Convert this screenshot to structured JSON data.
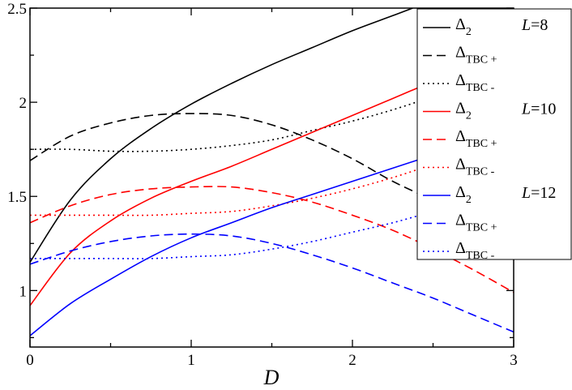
{
  "chart_data": {
    "type": "line",
    "title": "",
    "xlabel": "D",
    "ylabel": "",
    "xlim": [
      0,
      3
    ],
    "ylim": [
      0.7,
      2.5
    ],
    "x_ticks": [
      "0",
      "1",
      "2",
      "3"
    ],
    "y_ticks": [
      "1",
      "1.5",
      "2",
      "2.5"
    ],
    "grid": false,
    "legend_position": "top-right",
    "legend_groups": [
      {
        "name": "L=8",
        "var": "L",
        "value": "=8"
      },
      {
        "name": "L=10",
        "var": "L",
        "value": "=10"
      },
      {
        "name": "L=12",
        "var": "L",
        "value": "=12"
      }
    ],
    "x": [
      0,
      0.25,
      0.5,
      0.75,
      1,
      1.25,
      1.5,
      1.75,
      2,
      2.25,
      2.5,
      2.75,
      3
    ],
    "series": [
      {
        "label": "Δ",
        "sub": "2",
        "group": "L=8",
        "color": "#000000",
        "dash": "solid",
        "values": [
          1.15,
          1.48,
          1.7,
          1.86,
          1.99,
          2.1,
          2.2,
          2.29,
          2.38,
          2.46,
          2.54,
          2.61,
          2.68
        ]
      },
      {
        "label": "Δ",
        "sub": "TBC +",
        "group": "L=8",
        "color": "#000000",
        "dash": "dashed",
        "values": [
          1.69,
          1.82,
          1.89,
          1.93,
          1.94,
          1.93,
          1.88,
          1.8,
          1.7,
          1.58,
          1.48,
          1.38,
          1.27
        ]
      },
      {
        "label": "Δ",
        "sub": "TBC -",
        "group": "L=8",
        "color": "#000000",
        "dash": "dotted",
        "values": [
          1.75,
          1.75,
          1.74,
          1.74,
          1.75,
          1.77,
          1.8,
          1.85,
          1.9,
          1.96,
          2.03,
          2.1,
          2.2
        ]
      },
      {
        "label": "Δ",
        "sub": "2",
        "group": "L=10",
        "color": "#ff0000",
        "dash": "solid",
        "values": [
          0.92,
          1.2,
          1.37,
          1.49,
          1.58,
          1.66,
          1.75,
          1.84,
          1.93,
          2.02,
          2.11,
          2.19,
          2.28
        ]
      },
      {
        "label": "Δ",
        "sub": "TBC +",
        "group": "L=10",
        "color": "#ff0000",
        "dash": "dashed",
        "values": [
          1.36,
          1.45,
          1.51,
          1.54,
          1.55,
          1.55,
          1.52,
          1.47,
          1.4,
          1.32,
          1.22,
          1.11,
          0.99
        ]
      },
      {
        "label": "Δ",
        "sub": "TBC -",
        "group": "L=10",
        "color": "#ff0000",
        "dash": "dotted",
        "values": [
          1.4,
          1.4,
          1.4,
          1.4,
          1.41,
          1.42,
          1.45,
          1.49,
          1.54,
          1.6,
          1.67,
          1.74,
          1.81
        ]
      },
      {
        "label": "Δ",
        "sub": "2",
        "group": "L=12",
        "color": "#0000ff",
        "dash": "solid",
        "values": [
          0.76,
          0.93,
          1.06,
          1.18,
          1.28,
          1.36,
          1.44,
          1.51,
          1.58,
          1.65,
          1.72,
          1.79,
          1.86
        ]
      },
      {
        "label": "Δ",
        "sub": "TBC +",
        "group": "L=12",
        "color": "#0000ff",
        "dash": "dashed",
        "values": [
          1.14,
          1.21,
          1.26,
          1.29,
          1.3,
          1.29,
          1.25,
          1.19,
          1.12,
          1.04,
          0.96,
          0.87,
          0.78
        ]
      },
      {
        "label": "Δ",
        "sub": "TBC -",
        "group": "L=12",
        "color": "#0000ff",
        "dash": "dotted",
        "values": [
          1.17,
          1.17,
          1.17,
          1.17,
          1.18,
          1.19,
          1.22,
          1.26,
          1.31,
          1.36,
          1.42,
          1.48,
          1.55
        ]
      }
    ]
  }
}
